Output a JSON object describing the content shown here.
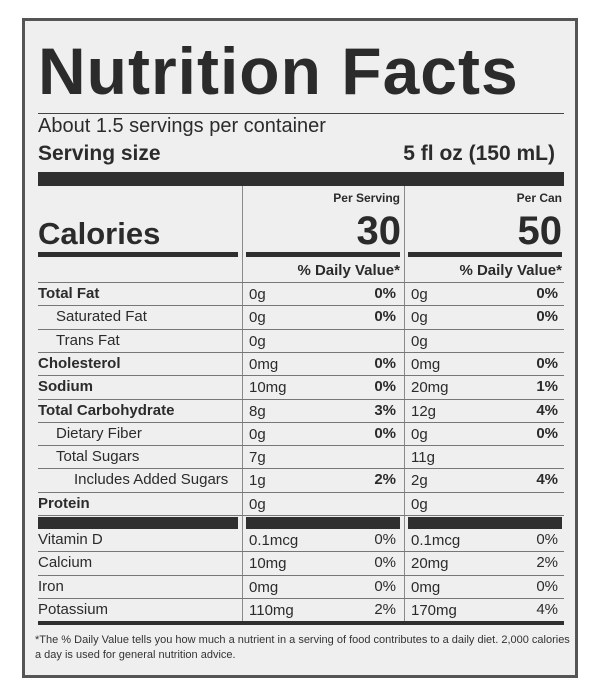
{
  "title": "Nutrition Facts",
  "servings_per_container": "About 1.5 servings per container",
  "serving_size_label": "Serving size",
  "serving_size_value": "5 fl oz (150 mL)",
  "per_serving_label": "Per Serving",
  "per_can_label": "Per Can",
  "calories_label": "Calories",
  "calories_per_serving": "30",
  "calories_per_can": "50",
  "dv_header": "% Daily Value*",
  "nutrients": [
    {
      "name": "Total Fat",
      "serving_amount": "0g",
      "serving_dv": "0%",
      "can_amount": "0g",
      "can_dv": "0%"
    },
    {
      "name": "Saturated Fat",
      "serving_amount": "0g",
      "serving_dv": "0%",
      "can_amount": "0g",
      "can_dv": "0%"
    },
    {
      "name": "Trans Fat",
      "serving_amount": "0g",
      "serving_dv": "",
      "can_amount": "0g",
      "can_dv": ""
    },
    {
      "name": "Cholesterol",
      "serving_amount": "0mg",
      "serving_dv": "0%",
      "can_amount": "0mg",
      "can_dv": "0%"
    },
    {
      "name": "Sodium",
      "serving_amount": "10mg",
      "serving_dv": "0%",
      "can_amount": "20mg",
      "can_dv": "1%"
    },
    {
      "name": "Total Carbohydrate",
      "serving_amount": "8g",
      "serving_dv": "3%",
      "can_amount": "12g",
      "can_dv": "4%"
    },
    {
      "name": "Dietary Fiber",
      "serving_amount": "0g",
      "serving_dv": "0%",
      "can_amount": "0g",
      "can_dv": "0%"
    },
    {
      "name": "Total Sugars",
      "serving_amount": "7g",
      "serving_dv": "",
      "can_amount": "11g",
      "can_dv": ""
    },
    {
      "name": "Includes Added Sugars",
      "serving_amount": "1g",
      "serving_dv": "2%",
      "can_amount": "2g",
      "can_dv": "4%"
    },
    {
      "name": "Protein",
      "serving_amount": "0g",
      "serving_dv": "",
      "can_amount": "0g",
      "can_dv": ""
    }
  ],
  "vitamins": [
    {
      "name": "Vitamin D",
      "serving_amount": "0.1mcg",
      "serving_dv": "0%",
      "can_amount": "0.1mcg",
      "can_dv": "0%"
    },
    {
      "name": "Calcium",
      "serving_amount": "10mg",
      "serving_dv": "0%",
      "can_amount": "20mg",
      "can_dv": "2%"
    },
    {
      "name": "Iron",
      "serving_amount": "0mg",
      "serving_dv": "0%",
      "can_amount": "0mg",
      "can_dv": "0%"
    },
    {
      "name": "Potassium",
      "serving_amount": "110mg",
      "serving_dv": "2%",
      "can_amount": "170mg",
      "can_dv": "4%"
    }
  ],
  "footnote": "*The % Daily Value tells you how much a nutrient in a serving of food contributes to a daily diet. 2,000 calories a day is used for general nutrition advice."
}
